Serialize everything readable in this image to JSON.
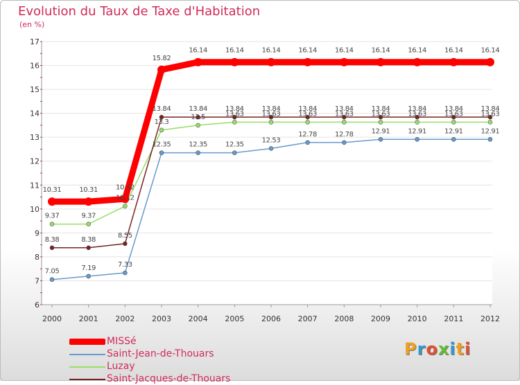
{
  "title": "Evolution du Taux de Taxe d'Habitation",
  "subtitle": "(en %)",
  "chart_data": {
    "type": "line",
    "title": "Evolution du Taux de Taxe d'Habitation",
    "ylabel": "(en %)",
    "xlabel": "",
    "x": [
      "2000",
      "2001",
      "2002",
      "2003",
      "2004",
      "2005",
      "2006",
      "2007",
      "2008",
      "2009",
      "2010",
      "2011",
      "2012"
    ],
    "ylim": [
      6,
      17
    ],
    "yticks": [
      6,
      7,
      8,
      9,
      10,
      11,
      12,
      13,
      14,
      15,
      16,
      17
    ],
    "legend_position": "bottom-left",
    "series": [
      {
        "name": "MISSé",
        "color": "#ff0000",
        "width": 9,
        "values": [
          10.31,
          10.31,
          10.42,
          15.82,
          16.14,
          16.14,
          16.14,
          16.14,
          16.14,
          16.14,
          16.14,
          16.14,
          16.14
        ],
        "labels": [
          "10.31",
          "10.31",
          "10.42",
          "15.82",
          "16.14",
          "16.14",
          "16.14",
          "16.14",
          "16.14",
          "16.14",
          "16.14",
          "16.14",
          "16.14"
        ]
      },
      {
        "name": "Saint-Jean-de-Thouars",
        "color": "#6699cc",
        "width": 1.5,
        "values": [
          7.05,
          7.19,
          7.33,
          12.35,
          12.35,
          12.35,
          12.53,
          12.78,
          12.78,
          12.91,
          12.91,
          12.91,
          12.91
        ],
        "labels": [
          "7.05",
          "7.19",
          "7.33",
          "12.35",
          "12.35",
          "12.35",
          "12.53",
          "12.78",
          "12.78",
          "12.91",
          "12.91",
          "12.91",
          "12.91"
        ]
      },
      {
        "name": "Luzay",
        "color": "#99dd66",
        "width": 1.5,
        "values": [
          9.37,
          9.37,
          10.12,
          13.3,
          13.5,
          13.63,
          13.63,
          13.63,
          13.63,
          13.63,
          13.63,
          13.63,
          13.63
        ],
        "labels": [
          "9.37",
          "9.37",
          "10.12",
          "13.3",
          "13.5",
          "13.63",
          "13.63",
          "13.63",
          "13.63",
          "13.63",
          "13.63",
          "13.63",
          "13.63"
        ]
      },
      {
        "name": "Saint-Jacques-de-Thouars",
        "color": "#772222",
        "width": 1.5,
        "values": [
          8.38,
          8.38,
          8.55,
          13.84,
          13.84,
          13.84,
          13.84,
          13.84,
          13.84,
          13.84,
          13.84,
          13.84,
          13.84
        ],
        "labels": [
          "8.38",
          "8.38",
          "8.55",
          "13.84",
          "13.84",
          "13.84",
          "13.84",
          "13.84",
          "13.84",
          "13.84",
          "13.84",
          "13.84",
          "13.84"
        ]
      }
    ]
  },
  "legend": {
    "items": [
      {
        "label": "MISSé",
        "color": "#ff0000"
      },
      {
        "label": "Saint-Jean-de-Thouars",
        "color": "#6699cc"
      },
      {
        "label": "Luzay",
        "color": "#99dd66"
      },
      {
        "label": "Saint-Jacques-de-Thouars",
        "color": "#772222"
      }
    ]
  },
  "logo": {
    "text": "Proxiti"
  }
}
